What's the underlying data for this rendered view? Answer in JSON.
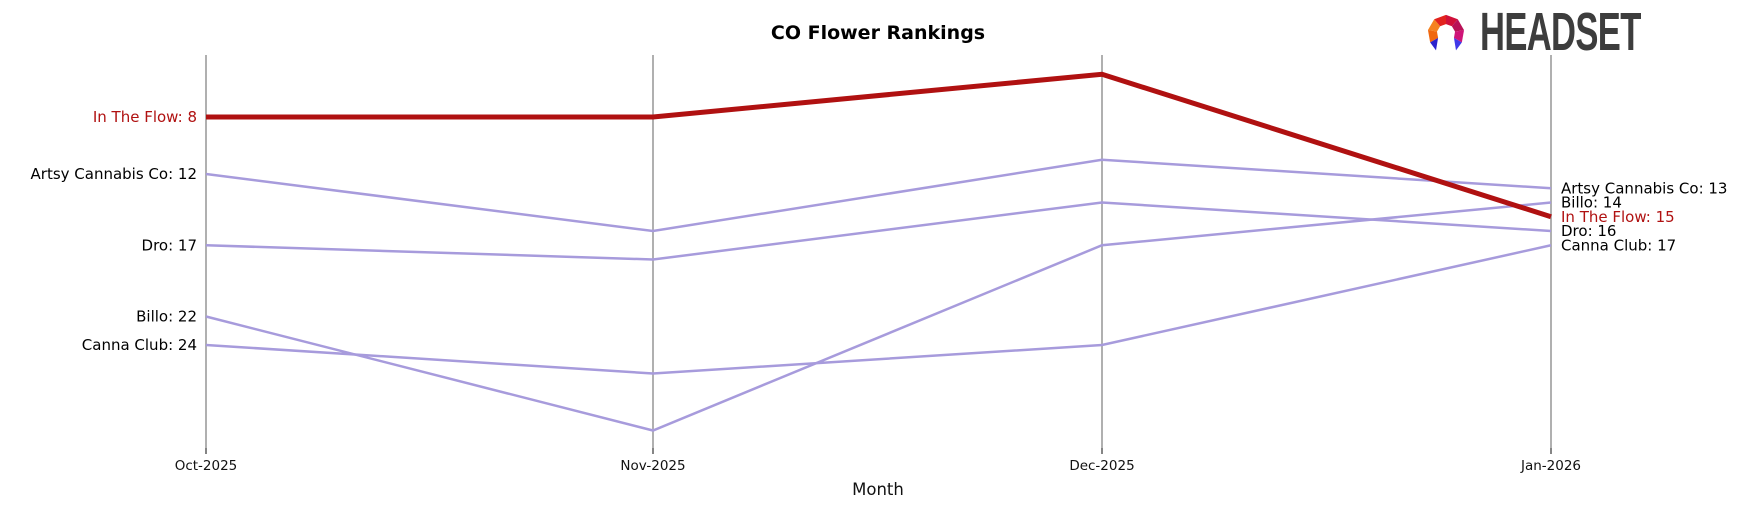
{
  "header": {
    "title": "CO Flower Rankings",
    "logo_text": "HEADSET"
  },
  "logo_colors": {
    "left_orange": "#f5821f",
    "upper_left_red": "#e2231e",
    "top_crimson": "#d0103a",
    "upper_right_maroon": "#b81257",
    "right_magenta": "#cf1478",
    "lower_right_pink": "#d5189a",
    "left_tip_blue": "#2b22cc",
    "right_tip_blue": "#4038e8",
    "wordmark_gray": "#3d3d3d"
  },
  "chart_data": {
    "type": "line",
    "variant": "bump-ranking",
    "title": "CO Flower Rankings",
    "xlabel": "Month",
    "x": [
      "Oct-2025",
      "Nov-2025",
      "Dec-2025",
      "Jan-2026"
    ],
    "y_axis": {
      "inverted": true,
      "unit": "rank",
      "shown_as": "edge labels only",
      "visible_rank_range": [
        5,
        30
      ]
    },
    "grid": {
      "vertical": true,
      "horizontal": false,
      "color": "#b0b0b0"
    },
    "legend_position": "none",
    "series": [
      {
        "name": "In The Flow",
        "values": [
          8,
          8,
          5,
          15
        ],
        "color": "#b01111",
        "line_width": 5,
        "emphasis": true,
        "left_label": "In The Flow: 8",
        "right_label": "In The Flow: 15",
        "label_color": "#b01111"
      },
      {
        "name": "Artsy Cannabis Co",
        "values": [
          12,
          16,
          11,
          13
        ],
        "color": "#a79bdc",
        "line_width": 2.5,
        "emphasis": false,
        "left_label": "Artsy Cannabis Co: 12",
        "right_label": "Artsy Cannabis Co: 13",
        "label_color": "#000000"
      },
      {
        "name": "Dro",
        "values": [
          17,
          18,
          14,
          16
        ],
        "color": "#a79bdc",
        "line_width": 2.5,
        "emphasis": false,
        "left_label": "Dro: 17",
        "right_label": "Dro: 16",
        "label_color": "#000000"
      },
      {
        "name": "Billo",
        "values": [
          22,
          30,
          17,
          14
        ],
        "color": "#a79bdc",
        "line_width": 2.5,
        "emphasis": false,
        "left_label": "Billo: 22",
        "right_label": "Billo: 14",
        "label_color": "#000000"
      },
      {
        "name": "Canna Club",
        "values": [
          24,
          26,
          24,
          17
        ],
        "color": "#a79bdc",
        "line_width": 2.5,
        "emphasis": false,
        "left_label": "Canna Club: 24",
        "right_label": "Canna Club: 17",
        "label_color": "#000000"
      }
    ]
  }
}
